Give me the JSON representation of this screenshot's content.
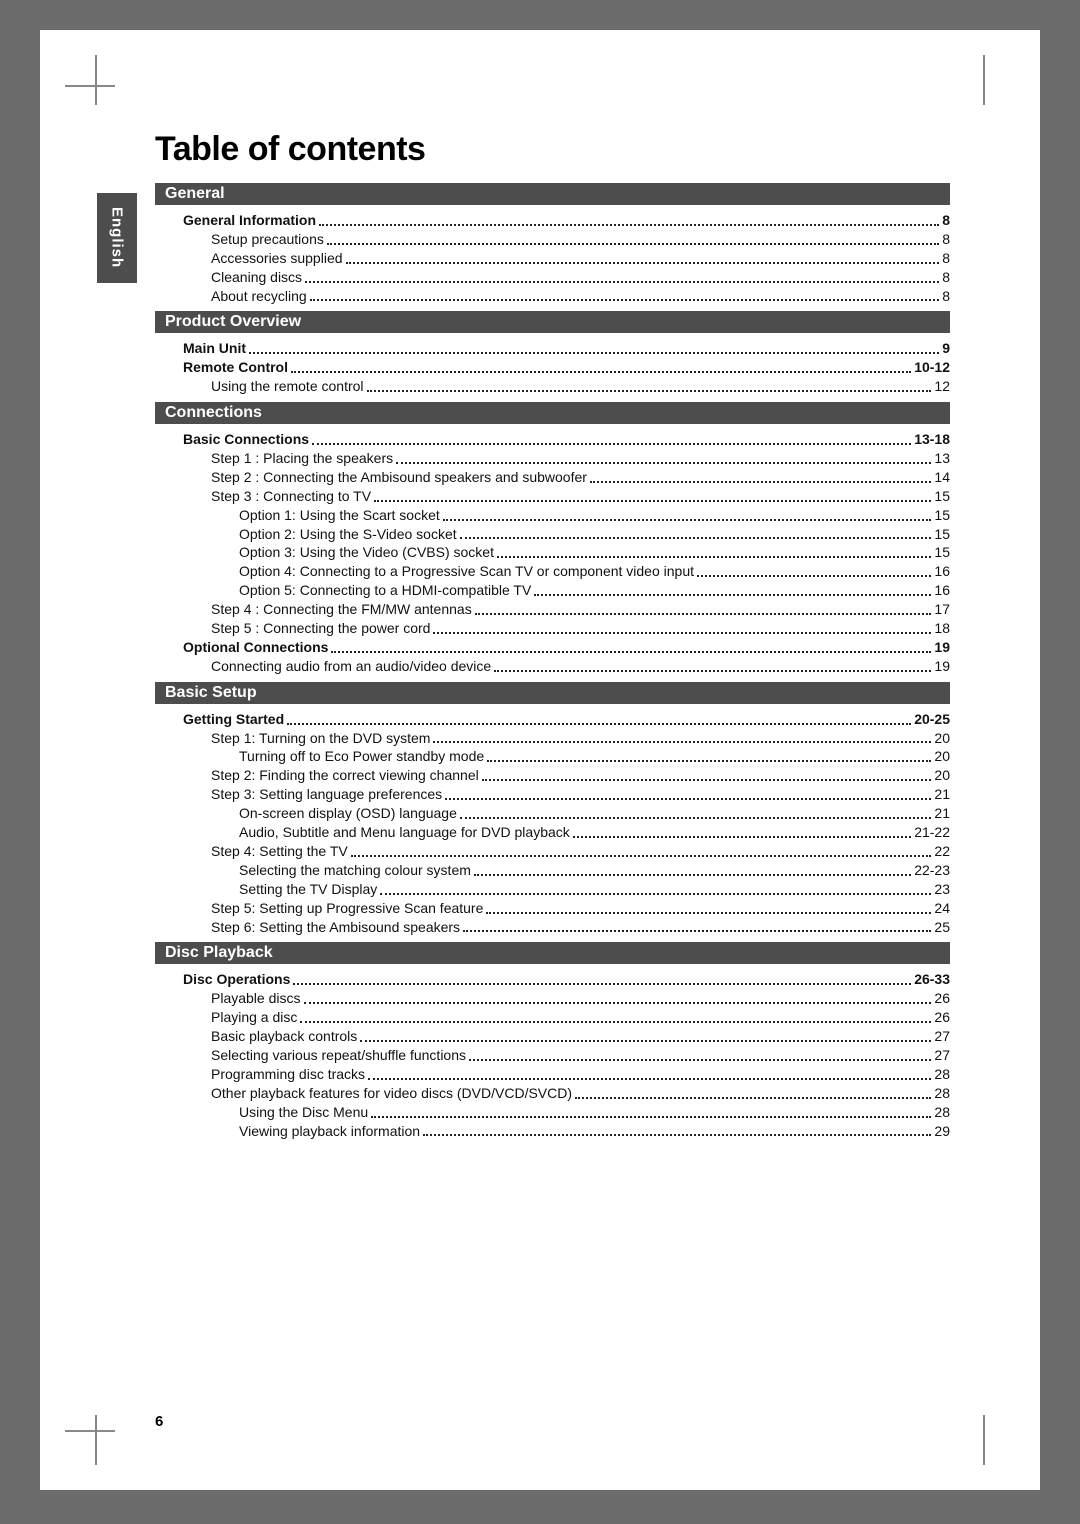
{
  "page_number": "6",
  "language_tab": "English",
  "title": "Table of contents",
  "sections": [
    {
      "heading": "General",
      "entries": [
        {
          "lvl": 1,
          "label": "General Information",
          "pg": "8"
        },
        {
          "lvl": 2,
          "label": "Setup precautions",
          "pg": "8"
        },
        {
          "lvl": 2,
          "label": "Accessories supplied",
          "pg": "8"
        },
        {
          "lvl": 2,
          "label": "Cleaning discs",
          "pg": "8"
        },
        {
          "lvl": 2,
          "label": "About recycling",
          "pg": "8"
        }
      ]
    },
    {
      "heading": "Product Overview",
      "entries": [
        {
          "lvl": 1,
          "label": "Main Unit",
          "pg": "9"
        },
        {
          "lvl": 1,
          "label": "Remote Control",
          "pg": "10-12"
        },
        {
          "lvl": 2,
          "label": "Using the remote control",
          "pg": "12"
        }
      ]
    },
    {
      "heading": "Connections",
      "entries": [
        {
          "lvl": 1,
          "label": "Basic Connections",
          "pg": "13-18"
        },
        {
          "lvl": 2,
          "label": "Step 1 : Placing the speakers",
          "pg": "13"
        },
        {
          "lvl": 2,
          "label": "Step 2 : Connecting the Ambisound speakers and subwoofer",
          "pg": "14"
        },
        {
          "lvl": 2,
          "label": "Step 3 : Connecting to TV",
          "pg": "15"
        },
        {
          "lvl": 3,
          "label": "Option 1: Using the Scart socket",
          "pg": "15"
        },
        {
          "lvl": 3,
          "label": "Option 2: Using the S-Video socket",
          "pg": "15"
        },
        {
          "lvl": 3,
          "label": "Option 3: Using the Video (CVBS) socket",
          "pg": "15"
        },
        {
          "lvl": 3,
          "label": "Option 4: Connecting to a Progressive Scan TV or component video input",
          "pg": "16"
        },
        {
          "lvl": 3,
          "label": "Option 5: Connecting to a HDMI-compatible TV",
          "pg": "16"
        },
        {
          "lvl": 2,
          "label": "Step 4 : Connecting the FM/MW antennas",
          "pg": "17"
        },
        {
          "lvl": 2,
          "label": "Step 5 : Connecting the power cord",
          "pg": "18"
        },
        {
          "lvl": 1,
          "label": "Optional Connections",
          "pg": "19"
        },
        {
          "lvl": 2,
          "label": "Connecting audio from an audio/video device",
          "pg": "19"
        }
      ]
    },
    {
      "heading": "Basic Setup",
      "entries": [
        {
          "lvl": 1,
          "label": "Getting Started",
          "pg": "20-25"
        },
        {
          "lvl": 2,
          "label": "Step 1: Turning on the DVD system",
          "pg": "20"
        },
        {
          "lvl": 3,
          "label": "Turning off to Eco Power standby mode",
          "pg": "20"
        },
        {
          "lvl": 2,
          "label": "Step 2: Finding the correct viewing channel",
          "pg": "20"
        },
        {
          "lvl": 2,
          "label": "Step 3: Setting language preferences",
          "pg": "21"
        },
        {
          "lvl": 3,
          "label": "On-screen display (OSD) language",
          "pg": "21"
        },
        {
          "lvl": 3,
          "label": "Audio, Subtitle and Menu language for DVD playback",
          "pg": "21-22"
        },
        {
          "lvl": 2,
          "label": "Step 4: Setting the TV",
          "pg": "22"
        },
        {
          "lvl": 3,
          "label": "Selecting the matching colour system",
          "pg": "22-23"
        },
        {
          "lvl": 3,
          "label": "Setting the TV Display",
          "pg": "23"
        },
        {
          "lvl": 2,
          "label": "Step 5: Setting up Progressive Scan feature",
          "pg": "24"
        },
        {
          "lvl": 2,
          "label": "Step 6: Setting the Ambisound speakers",
          "pg": "25"
        }
      ]
    },
    {
      "heading": "Disc Playback",
      "entries": [
        {
          "lvl": 1,
          "label": "Disc Operations",
          "pg": "26-33"
        },
        {
          "lvl": 2,
          "label": "Playable discs",
          "pg": "26"
        },
        {
          "lvl": 2,
          "label": "Playing a disc",
          "pg": "26"
        },
        {
          "lvl": 2,
          "label": "Basic playback controls",
          "pg": "27"
        },
        {
          "lvl": 2,
          "label": "Selecting various repeat/shuffle functions",
          "pg": "27"
        },
        {
          "lvl": 2,
          "label": "Programming disc tracks",
          "pg": "28"
        },
        {
          "lvl": 2,
          "label": "Other playback features for video discs (DVD/VCD/SVCD)",
          "pg": "28"
        },
        {
          "lvl": 3,
          "label": "Using the Disc Menu",
          "pg": "28"
        },
        {
          "lvl": 3,
          "label": "Viewing playback information",
          "pg": "29"
        }
      ]
    }
  ],
  "style": {
    "heading_bar_bg": "#4d4d4d",
    "heading_bar_fg": "#ffffff",
    "body_font": "Verdana, Arial, sans-serif",
    "title_fontsize": 34,
    "entry_fontsize": 14
  }
}
